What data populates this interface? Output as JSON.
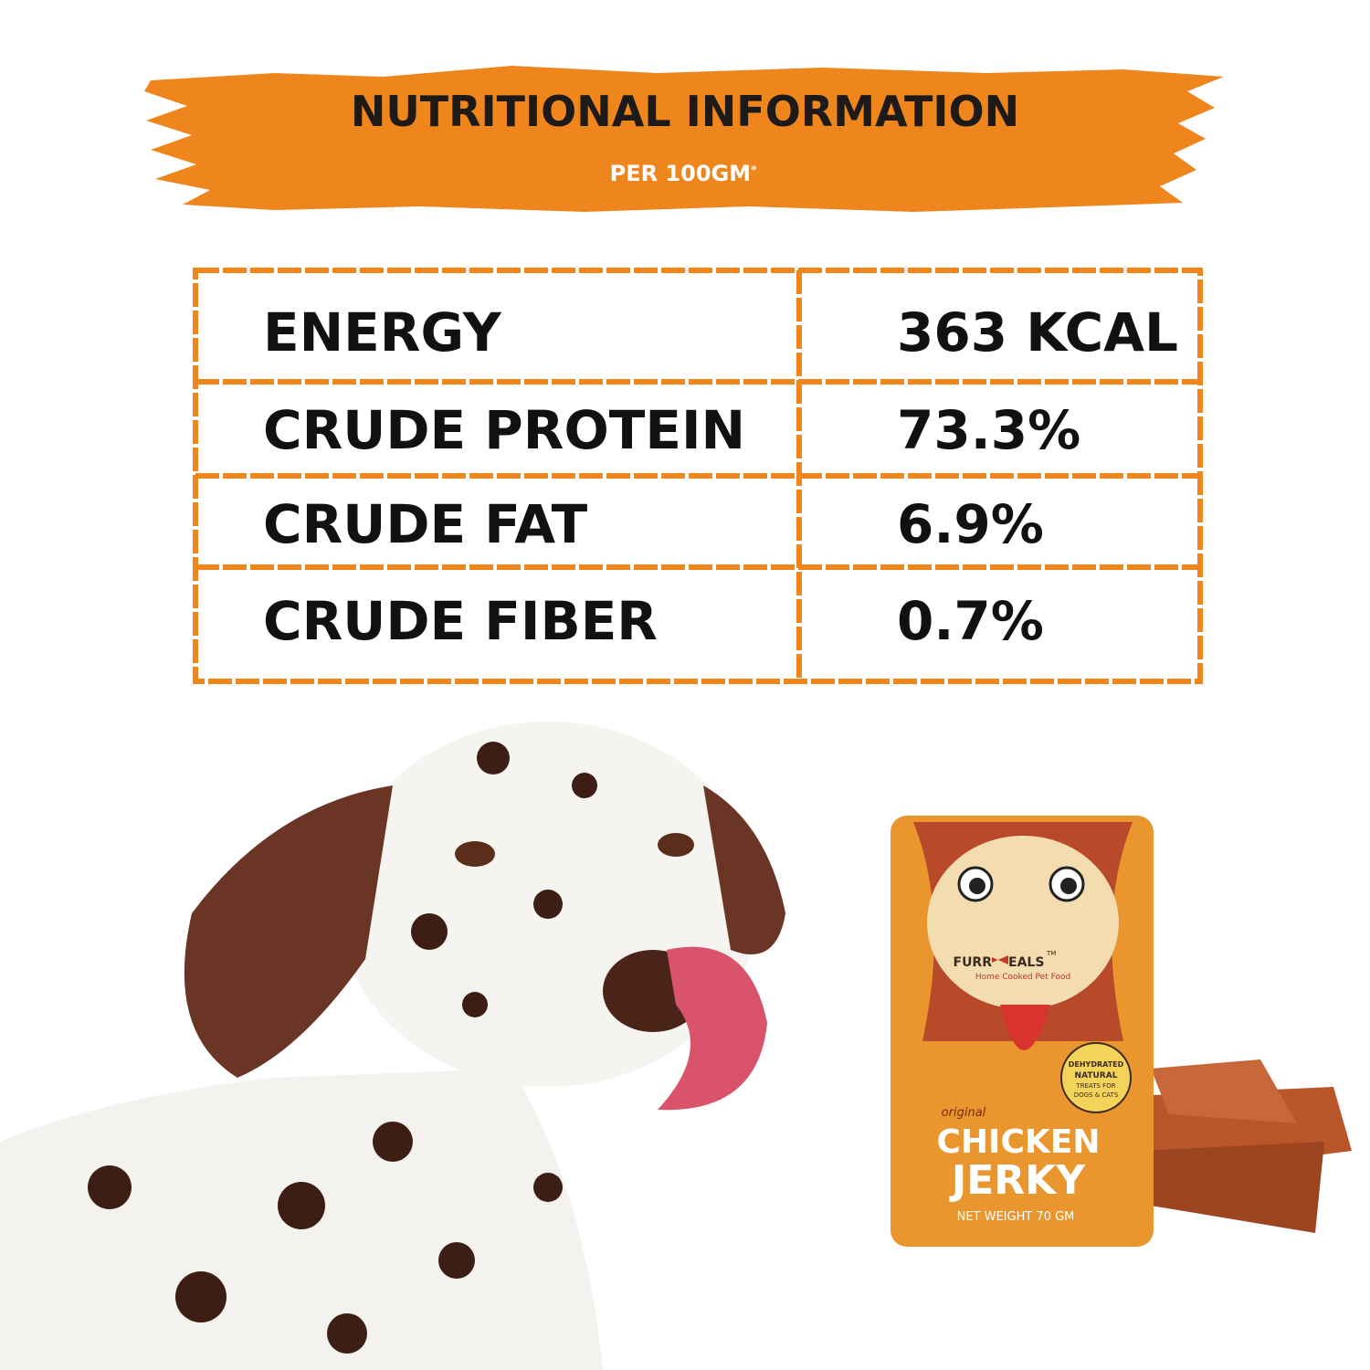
{
  "header": {
    "title": "NUTRITIONAL INFORMATION",
    "subtitle": "PER 100GM",
    "subtitle_mark": "*"
  },
  "table": {
    "rows": [
      [
        "ENERGY",
        "363 KCAL"
      ],
      [
        "CRUDE PROTEIN",
        "73.3%"
      ],
      [
        "CRUDE FAT",
        "6.9%"
      ],
      [
        "CRUDE FIBER",
        "0.7%"
      ]
    ]
  },
  "product": {
    "brand_left": "FURR",
    "brand_right": "EALS",
    "trademark": "TM",
    "tagline": "Home Cooked Pet Food",
    "badge_line1": "DEHYDRATED",
    "badge_line2": "NATURAL",
    "badge_line3": "TREATS FOR",
    "badge_line4": "DOGS & CATS",
    "variant": "original",
    "name_line1": "CHICKEN",
    "name_line2": "JERKY",
    "net_weight": "NET WEIGHT  70 GM"
  }
}
